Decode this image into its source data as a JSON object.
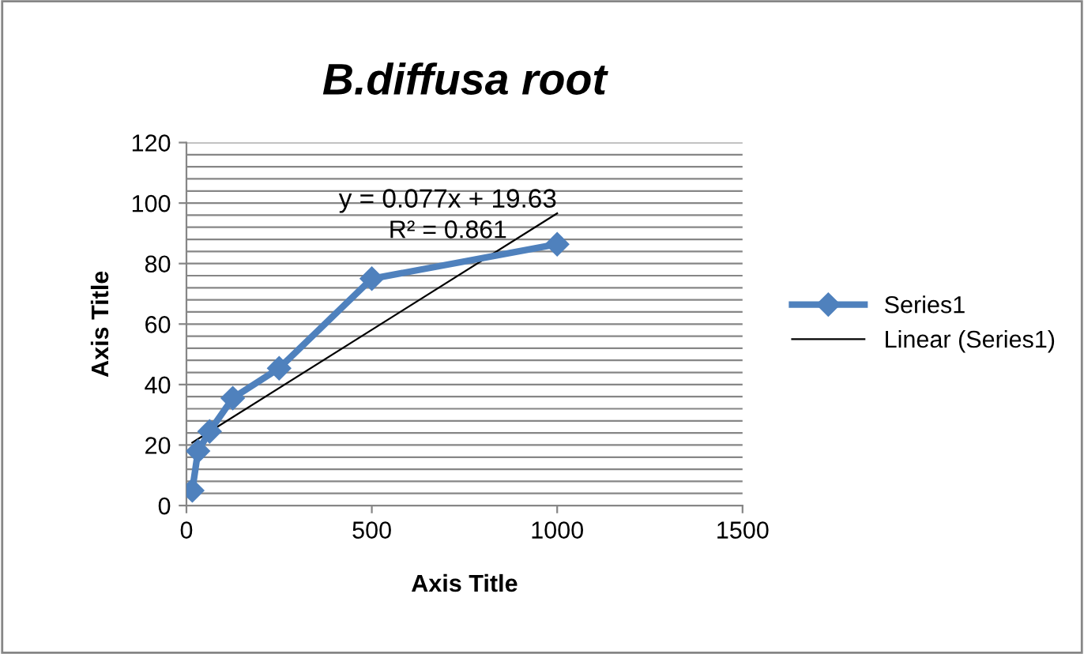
{
  "chart_data": {
    "type": "line",
    "title": "B.diffusa root",
    "xlabel": "Axis Title",
    "ylabel": "Axis Title",
    "series": [
      {
        "name": "Series1",
        "color": "#4f81bd",
        "x": [
          15.6,
          31.25,
          62.5,
          125,
          250,
          500,
          1000
        ],
        "values": [
          5,
          18,
          24.5,
          35.5,
          45.4,
          75,
          86.4
        ],
        "marker": "diamond",
        "line_style": "solid"
      },
      {
        "name": "Linear (Series1)",
        "color": "#000000",
        "x": [
          15.6,
          1000
        ],
        "values": [
          20.8,
          96.6
        ],
        "marker": "none",
        "line_style": "solid"
      }
    ],
    "annotations": [
      "y = 0.077x + 19.63",
      "R² = 0.861"
    ],
    "xlim": [
      0,
      1500
    ],
    "xticks": [
      0,
      500,
      1000,
      1500
    ],
    "ylim": [
      0,
      120
    ],
    "yticks": [
      0,
      {
        "value": 4,
        "label": null
      },
      {
        "value": 8,
        "label": null
      },
      {
        "value": 12,
        "label": null
      },
      {
        "value": 16,
        "label": null
      },
      20,
      {
        "value": 24,
        "label": null
      },
      {
        "value": 28,
        "label": null
      },
      {
        "value": 32,
        "label": null
      },
      {
        "value": 36,
        "label": null
      },
      40,
      {
        "value": 44,
        "label": null
      },
      {
        "value": 48,
        "label": null
      },
      {
        "value": 52,
        "label": null
      },
      {
        "value": 56,
        "label": null
      },
      60,
      {
        "value": 64,
        "label": null
      },
      {
        "value": 68,
        "label": null
      },
      {
        "value": 72,
        "label": null
      },
      {
        "value": 76,
        "label": null
      },
      80,
      {
        "value": 84,
        "label": null
      },
      {
        "value": 88,
        "label": null
      },
      {
        "value": 92,
        "label": null
      },
      {
        "value": 96,
        "label": null
      },
      100,
      {
        "value": 104,
        "label": null
      },
      {
        "value": 108,
        "label": null
      },
      {
        "value": 112,
        "label": null
      },
      {
        "value": 116,
        "label": null
      },
      120
    ],
    "grid": "y",
    "legend": "right"
  }
}
